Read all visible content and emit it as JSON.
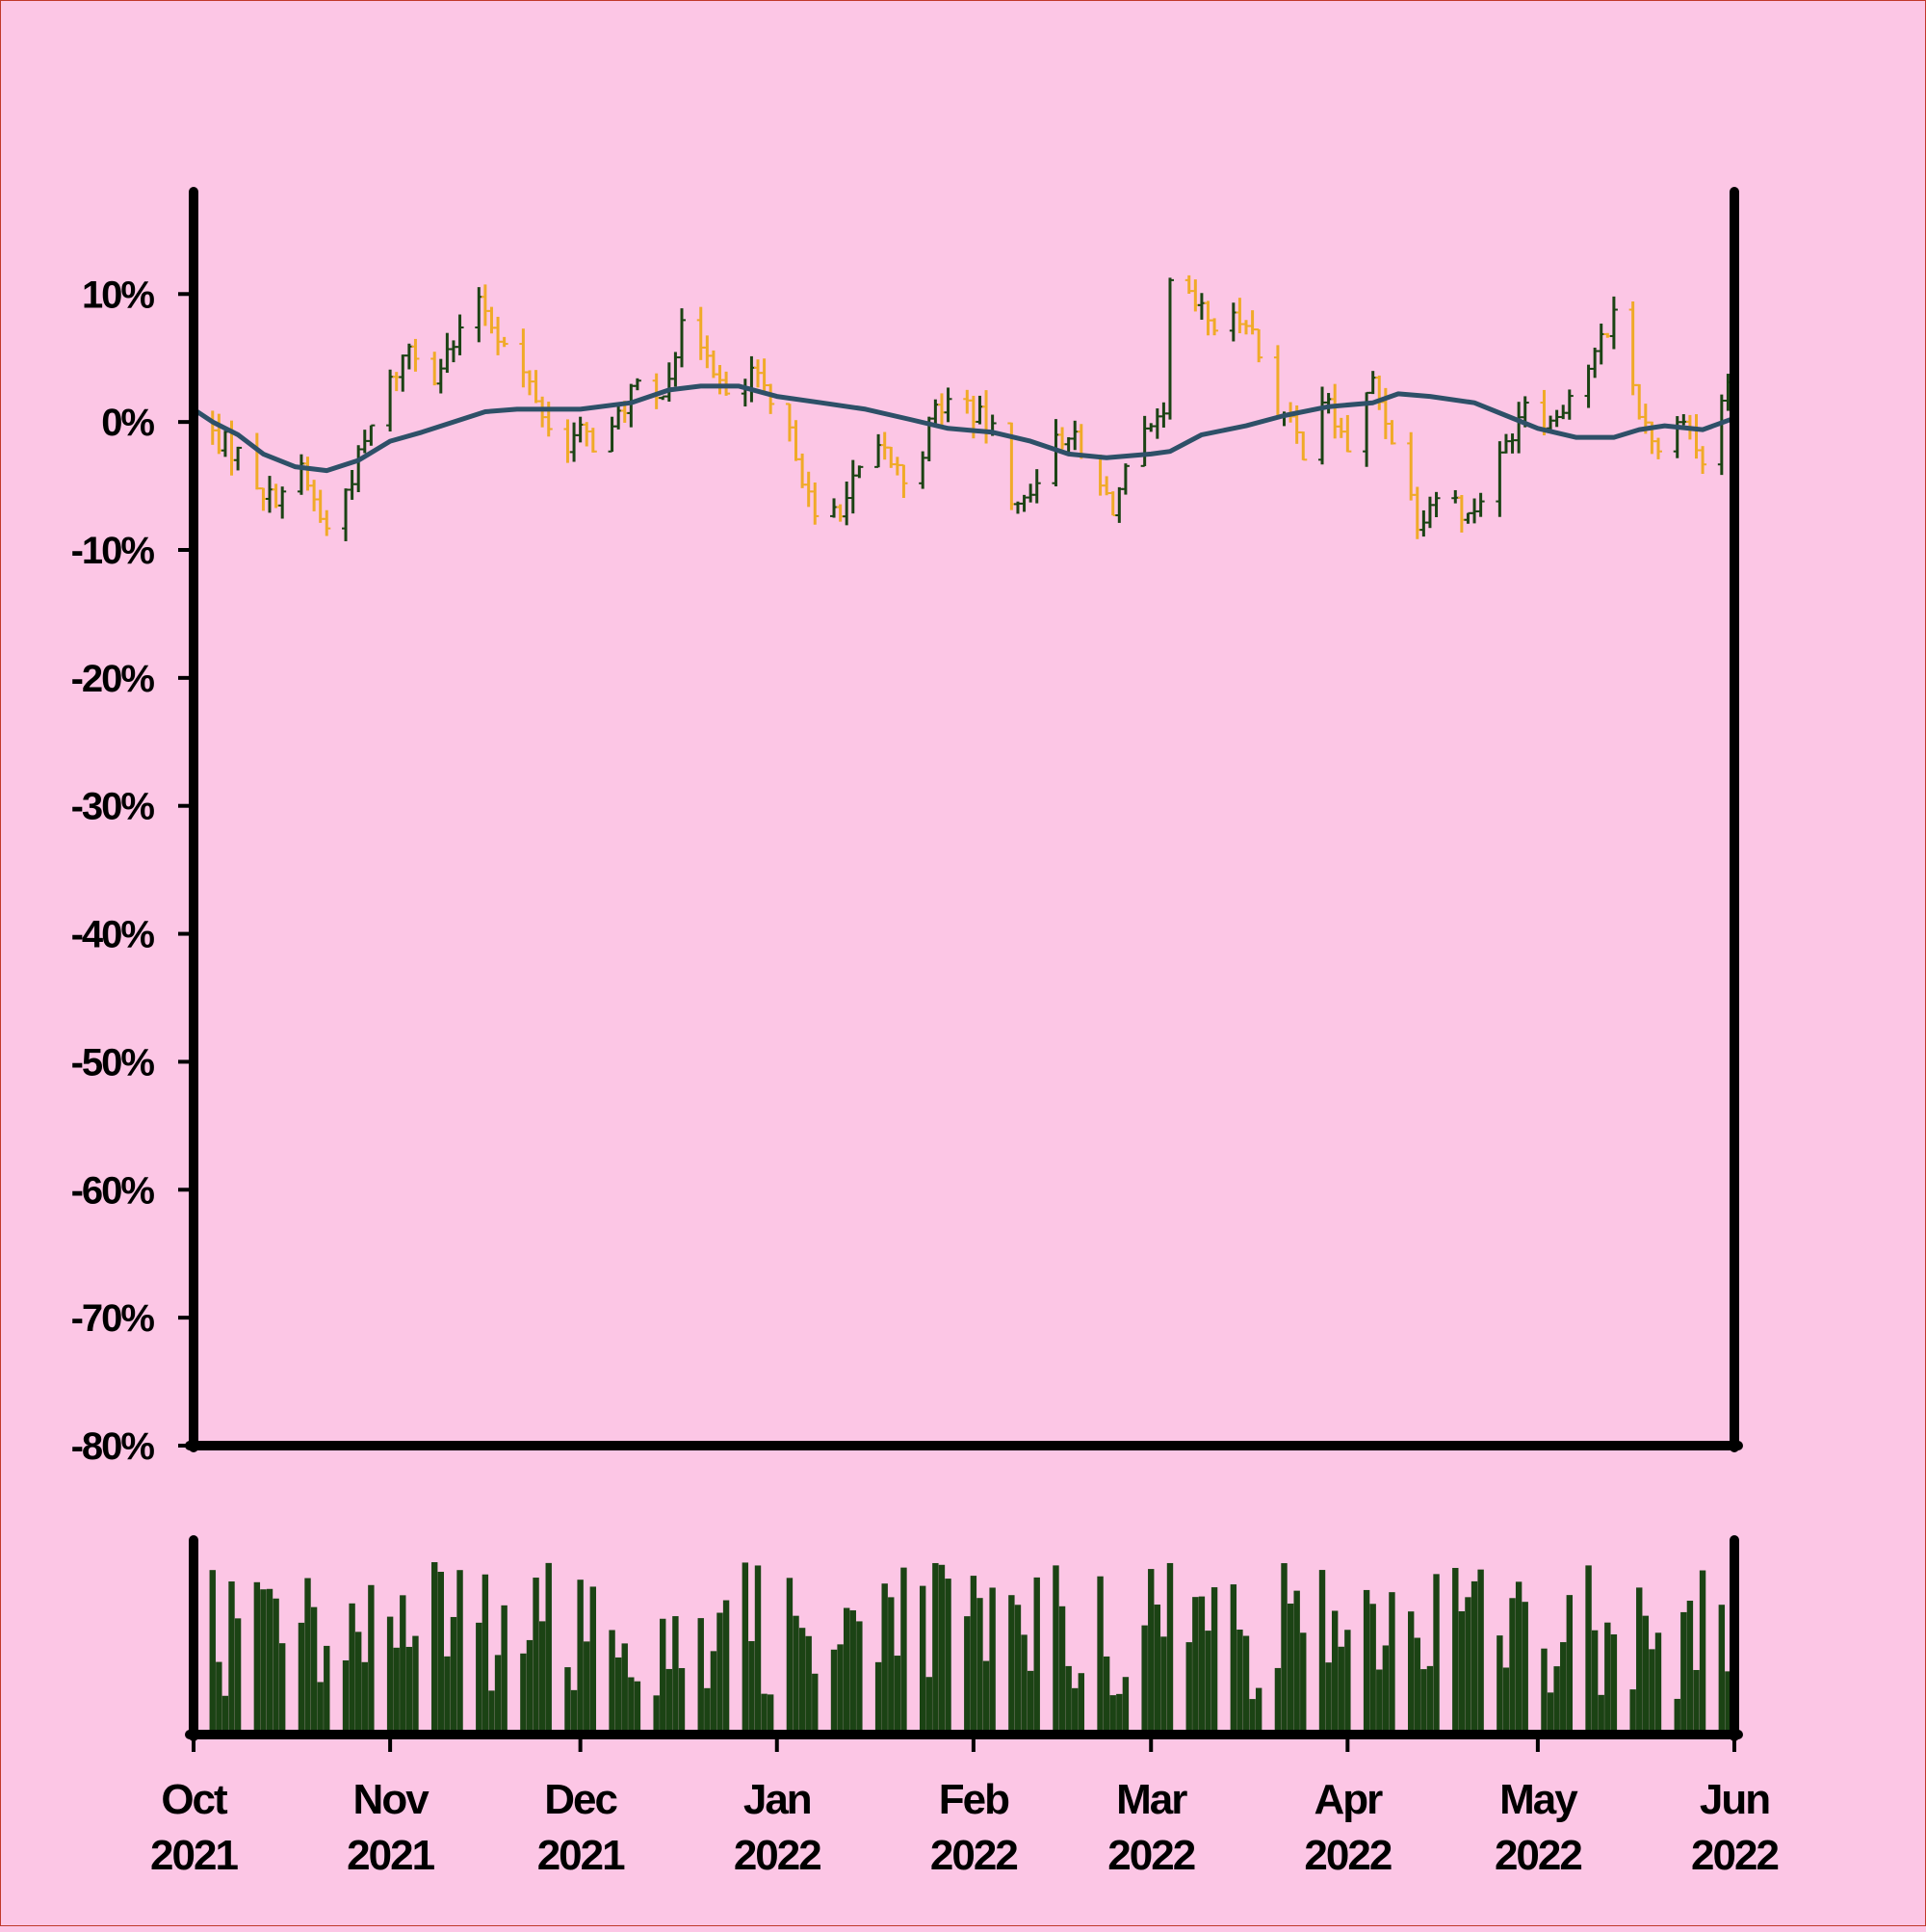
{
  "colors": {
    "background": "#fcc6e5",
    "up": "#1b4314",
    "down": "#f0aa28",
    "moving_average": "#2e5068",
    "volume": "#1b4314",
    "axis": "#000000"
  },
  "chart_data": [
    {
      "type": "ohlc",
      "title": "",
      "xlabel": "",
      "ylabel": "",
      "ylim": [
        -0.8,
        0.18
      ],
      "y_format": "percent",
      "yticks": [
        0.1,
        0,
        -0.1,
        -0.2,
        -0.3,
        -0.4,
        -0.5,
        -0.6,
        -0.7,
        -0.8
      ],
      "ytick_labels": [
        "10%",
        "0%",
        "-10%",
        "-20%",
        "-30%",
        "-40%",
        "-50%",
        "-60%",
        "-70%",
        "-80%"
      ],
      "xlim": [
        "2021-10-01",
        "2022-06-01"
      ],
      "grid": false,
      "legend": "none",
      "series_close_percent": [
        {
          "date": "2021-10-01",
          "close": 0.0
        },
        {
          "date": "2021-10-04",
          "close": -1.0
        },
        {
          "date": "2021-10-08",
          "close": -2.5
        },
        {
          "date": "2021-10-13",
          "close": -6.0
        },
        {
          "date": "2021-10-18",
          "close": -4.0
        },
        {
          "date": "2021-10-22",
          "close": -8.5
        },
        {
          "date": "2021-10-27",
          "close": -3.0
        },
        {
          "date": "2021-10-31",
          "close": 2.0
        },
        {
          "date": "2021-11-04",
          "close": 6.0
        },
        {
          "date": "2021-11-08",
          "close": 4.0
        },
        {
          "date": "2021-11-12",
          "close": 6.5
        },
        {
          "date": "2021-11-15",
          "close": 10.0
        },
        {
          "date": "2021-11-19",
          "close": 6.0
        },
        {
          "date": "2021-11-24",
          "close": 2.0
        },
        {
          "date": "2021-11-27",
          "close": -2.0
        },
        {
          "date": "2021-12-01",
          "close": -1.0
        },
        {
          "date": "2021-12-05",
          "close": -2.0
        },
        {
          "date": "2021-12-09",
          "close": 2.5
        },
        {
          "date": "2021-12-13",
          "close": 1.5
        },
        {
          "date": "2021-12-17",
          "close": 7.0
        },
        {
          "date": "2021-12-21",
          "close": 6.0
        },
        {
          "date": "2021-12-25",
          "close": 0.0
        },
        {
          "date": "2021-12-28",
          "close": 4.0
        },
        {
          "date": "2022-01-01",
          "close": 0.0
        },
        {
          "date": "2022-01-04",
          "close": -2.0
        },
        {
          "date": "2022-01-07",
          "close": -8.0
        },
        {
          "date": "2022-01-12",
          "close": -6.0
        },
        {
          "date": "2022-01-15",
          "close": -3.0
        },
        {
          "date": "2022-01-18",
          "close": -2.5
        },
        {
          "date": "2022-01-22",
          "close": -5.0
        },
        {
          "date": "2022-01-26",
          "close": 1.0
        },
        {
          "date": "2022-01-30",
          "close": 2.0
        },
        {
          "date": "2022-02-04",
          "close": -1.0
        },
        {
          "date": "2022-02-08",
          "close": -7.0
        },
        {
          "date": "2022-02-12",
          "close": -3.0
        },
        {
          "date": "2022-02-16",
          "close": -0.5
        },
        {
          "date": "2022-02-19",
          "close": -4.0
        },
        {
          "date": "2022-02-23",
          "close": -6.5
        },
        {
          "date": "2022-02-27",
          "close": -2.0
        },
        {
          "date": "2022-03-01",
          "close": -1.0
        },
        {
          "date": "2022-03-03",
          "close": 0.0
        },
        {
          "date": "2022-03-04",
          "close": 10.5
        },
        {
          "date": "2022-03-08",
          "close": 9.0
        },
        {
          "date": "2022-03-12",
          "close": 7.0
        },
        {
          "date": "2022-03-16",
          "close": 8.5
        },
        {
          "date": "2022-03-20",
          "close": 2.0
        },
        {
          "date": "2022-03-25",
          "close": -2.0
        },
        {
          "date": "2022-03-28",
          "close": 2.0
        },
        {
          "date": "2022-04-01",
          "close": -2.0
        },
        {
          "date": "2022-04-05",
          "close": 3.0
        },
        {
          "date": "2022-04-08",
          "close": -1.0
        },
        {
          "date": "2022-04-12",
          "close": -7.5
        },
        {
          "date": "2022-04-16",
          "close": -5.0
        },
        {
          "date": "2022-04-20",
          "close": -7.5
        },
        {
          "date": "2022-04-25",
          "close": -3.0
        },
        {
          "date": "2022-04-29",
          "close": 2.0
        },
        {
          "date": "2022-05-03",
          "close": 0.0
        },
        {
          "date": "2022-05-07",
          "close": 3.0
        },
        {
          "date": "2022-05-10",
          "close": 5.0
        },
        {
          "date": "2022-05-13",
          "close": 8.5
        },
        {
          "date": "2022-05-17",
          "close": 1.0
        },
        {
          "date": "2022-05-21",
          "close": -3.0
        },
        {
          "date": "2022-05-24",
          "close": 1.0
        },
        {
          "date": "2022-05-27",
          "close": -3.5
        },
        {
          "date": "2022-06-01",
          "close": 5.0
        }
      ],
      "moving_average_percent": [
        {
          "date": "2021-10-01",
          "value": 1.0
        },
        {
          "date": "2021-10-04",
          "value": 0.0
        },
        {
          "date": "2021-10-08",
          "value": -1.0
        },
        {
          "date": "2021-10-12",
          "value": -2.5
        },
        {
          "date": "2021-10-17",
          "value": -3.5
        },
        {
          "date": "2021-10-22",
          "value": -3.8
        },
        {
          "date": "2021-10-27",
          "value": -3.0
        },
        {
          "date": "2021-11-01",
          "value": -1.5
        },
        {
          "date": "2021-11-06",
          "value": -0.8
        },
        {
          "date": "2021-11-11",
          "value": 0.0
        },
        {
          "date": "2021-11-16",
          "value": 0.8
        },
        {
          "date": "2021-11-21",
          "value": 1.0
        },
        {
          "date": "2021-12-01",
          "value": 1.0
        },
        {
          "date": "2021-12-09",
          "value": 1.5
        },
        {
          "date": "2021-12-15",
          "value": 2.5
        },
        {
          "date": "2021-12-20",
          "value": 2.8
        },
        {
          "date": "2021-12-26",
          "value": 2.8
        },
        {
          "date": "2022-01-01",
          "value": 2.0
        },
        {
          "date": "2022-01-08",
          "value": 1.5
        },
        {
          "date": "2022-01-15",
          "value": 1.0
        },
        {
          "date": "2022-01-22",
          "value": 0.2
        },
        {
          "date": "2022-01-28",
          "value": -0.5
        },
        {
          "date": "2022-02-04",
          "value": -0.8
        },
        {
          "date": "2022-02-10",
          "value": -1.5
        },
        {
          "date": "2022-02-16",
          "value": -2.5
        },
        {
          "date": "2022-02-22",
          "value": -2.8
        },
        {
          "date": "2022-03-01",
          "value": -2.5
        },
        {
          "date": "2022-03-04",
          "value": -2.3
        },
        {
          "date": "2022-03-09",
          "value": -1.0
        },
        {
          "date": "2022-03-16",
          "value": -0.3
        },
        {
          "date": "2022-03-22",
          "value": 0.5
        },
        {
          "date": "2022-03-29",
          "value": 1.2
        },
        {
          "date": "2022-04-05",
          "value": 1.5
        },
        {
          "date": "2022-04-09",
          "value": 2.2
        },
        {
          "date": "2022-04-14",
          "value": 2.0
        },
        {
          "date": "2022-04-21",
          "value": 1.5
        },
        {
          "date": "2022-04-26",
          "value": 0.5
        },
        {
          "date": "2022-05-01",
          "value": -0.5
        },
        {
          "date": "2022-05-07",
          "value": -1.2
        },
        {
          "date": "2022-05-13",
          "value": -1.2
        },
        {
          "date": "2022-05-17",
          "value": -0.6
        },
        {
          "date": "2022-05-21",
          "value": -0.3
        },
        {
          "date": "2022-05-27",
          "value": -0.6
        },
        {
          "date": "2022-06-01",
          "value": 0.3
        }
      ]
    },
    {
      "type": "bar",
      "title": "",
      "ylabel": "",
      "note_volume": "volume panel; values are relative heights (0-1) per trading day, y-axis unlabeled",
      "xticks": [
        "2021-10-01",
        "2021-11-01",
        "2021-12-01",
        "2022-01-01",
        "2022-02-01",
        "2022-03-01",
        "2022-04-01",
        "2022-05-01",
        "2022-06-01"
      ],
      "xtick_labels": [
        {
          "month": "Oct",
          "year": "2021"
        },
        {
          "month": "Nov",
          "year": "2021"
        },
        {
          "month": "Dec",
          "year": "2021"
        },
        {
          "month": "Jan",
          "year": "2022"
        },
        {
          "month": "Feb",
          "year": "2022"
        },
        {
          "month": "Mar",
          "year": "2022"
        },
        {
          "month": "Apr",
          "year": "2022"
        },
        {
          "month": "May",
          "year": "2022"
        },
        {
          "month": "Jun",
          "year": "2022"
        }
      ]
    }
  ]
}
